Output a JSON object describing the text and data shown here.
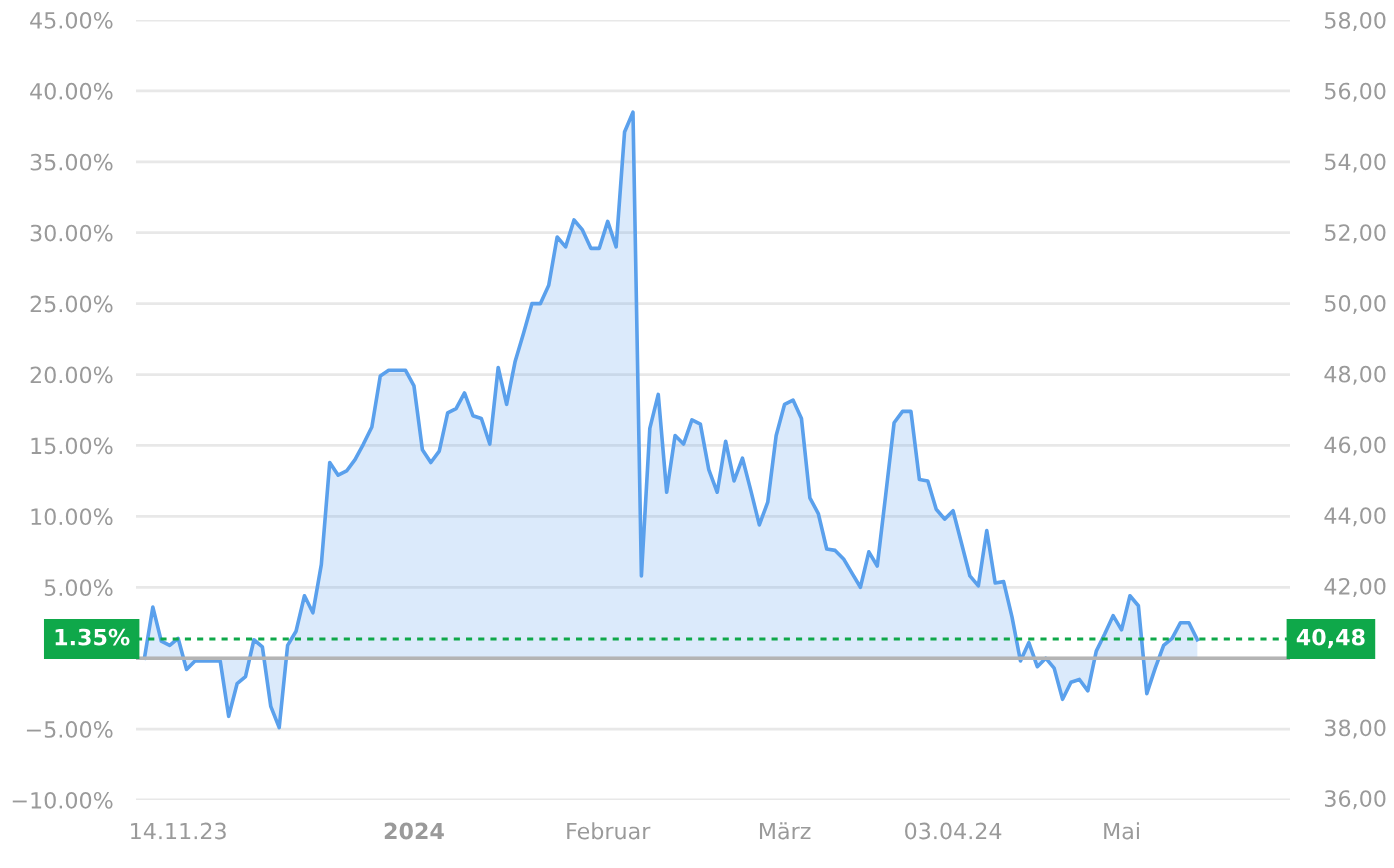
{
  "chart_data": {
    "type": "area",
    "categories": [
      null,
      null,
      null,
      null,
      "14.11.23",
      null,
      null,
      null,
      null,
      null,
      null,
      null,
      null,
      null,
      null,
      null,
      null,
      null,
      null,
      null,
      null,
      null,
      null,
      null,
      null,
      null,
      null,
      null,
      null,
      null,
      null,
      null,
      "2024",
      null,
      null,
      null,
      null,
      null,
      null,
      null,
      null,
      null,
      null,
      null,
      null,
      null,
      null,
      null,
      null,
      null,
      null,
      null,
      null,
      null,
      null,
      "Februar",
      null,
      null,
      null,
      null,
      null,
      null,
      null,
      null,
      null,
      null,
      null,
      null,
      null,
      null,
      null,
      null,
      null,
      null,
      null,
      null,
      "März",
      null,
      null,
      null,
      null,
      null,
      null,
      null,
      null,
      null,
      null,
      null,
      null,
      null,
      null,
      null,
      null,
      null,
      null,
      null,
      "03.04.24",
      null,
      null,
      null,
      null,
      null,
      null,
      null,
      null,
      null,
      null,
      null,
      null,
      null,
      null,
      null,
      null,
      null,
      null,
      null,
      "Mai",
      null,
      null,
      null,
      null,
      null,
      null,
      null,
      null,
      null,
      null,
      null,
      null,
      null,
      null,
      null,
      null,
      null,
      null,
      null
    ],
    "series": [
      {
        "color": "#5aa0ec",
        "values": [
          0.0,
          3.6,
          1.2,
          0.9,
          1.4,
          -0.8,
          -0.2,
          -0.2,
          -0.2,
          -0.2,
          -4.1,
          -1.8,
          -1.3,
          1.3,
          0.8,
          -3.4,
          -4.9,
          0.9,
          1.9,
          4.4,
          3.2,
          6.6,
          13.8,
          12.9,
          13.2,
          14.0,
          15.1,
          16.3,
          19.9,
          20.3,
          20.3,
          20.3,
          19.2,
          14.7,
          13.8,
          14.6,
          17.3,
          17.6,
          18.7,
          17.1,
          16.9,
          15.1,
          20.5,
          17.9,
          20.9,
          22.9,
          25.0,
          25.0,
          26.3,
          29.7,
          29.0,
          30.9,
          30.2,
          28.9,
          28.9,
          30.8,
          29.0,
          37.1,
          38.5,
          5.8,
          16.2,
          18.6,
          11.7,
          15.7,
          15.1,
          16.8,
          16.5,
          13.3,
          11.7,
          15.3,
          12.5,
          14.1,
          11.8,
          9.4,
          11.0,
          15.7,
          17.9,
          18.2,
          16.9,
          11.3,
          10.2,
          7.7,
          7.6,
          7.0,
          6.0,
          5.0,
          7.5,
          6.5,
          11.5,
          16.6,
          17.4,
          17.4,
          12.6,
          12.5,
          10.5,
          9.8,
          10.4,
          8.1,
          5.8,
          5.1,
          9.0,
          5.3,
          5.4,
          2.9,
          -0.2,
          1.1,
          -0.6,
          0.0,
          -0.7,
          -2.9,
          -1.7,
          -1.5,
          -2.3,
          0.5,
          1.7,
          3.0,
          2.0,
          4.4,
          3.7,
          -2.5,
          -0.7,
          0.9,
          1.4,
          2.5,
          2.5,
          1.3,
          null,
          null,
          null,
          null,
          null,
          null,
          null,
          null,
          null,
          null
        ]
      }
    ],
    "ylim": [
      -10,
      45
    ],
    "yticks": [
      {
        "value": -10,
        "label": "−10.00%"
      },
      {
        "value": -5,
        "label": "−5.00%"
      },
      {
        "value": 0,
        "label": null
      },
      {
        "value": 5,
        "label": "5.00%"
      },
      {
        "value": 10,
        "label": "10.00%"
      },
      {
        "value": 15,
        "label": "15.00%"
      },
      {
        "value": 20,
        "label": "20.00%"
      },
      {
        "value": 25,
        "label": "25.00%"
      },
      {
        "value": 30,
        "label": "30.00%"
      },
      {
        "value": 35,
        "label": "35.00%"
      },
      {
        "value": 40,
        "label": "40.00%"
      },
      {
        "value": 45,
        "label": "45.00%"
      }
    ],
    "y2lim": [
      35.95,
      58.0
    ],
    "y2ticks": [
      {
        "value": 36,
        "label": "36,00"
      },
      {
        "value": 38,
        "label": "38,00"
      },
      {
        "value": 40,
        "label": null
      },
      {
        "value": 42,
        "label": "42,00"
      },
      {
        "value": 44,
        "label": "44,00"
      },
      {
        "value": 46,
        "label": "46,00"
      },
      {
        "value": 48,
        "label": "48,00"
      },
      {
        "value": 50,
        "label": "50,00"
      },
      {
        "value": 52,
        "label": "52,00"
      },
      {
        "value": 54,
        "label": "54,00"
      },
      {
        "value": 56,
        "label": "56,00"
      },
      {
        "value": 58,
        "label": "58,00"
      }
    ],
    "ref_lines": [
      {
        "axis": "y",
        "value": 0,
        "label": null,
        "color": "#b4b4b4",
        "line_style": "solid"
      },
      {
        "axis": "y",
        "value": 1.35,
        "label": "1.35%",
        "color": "#0fa84a",
        "line_style": "dotted"
      }
    ],
    "annotations": [
      "40,48"
    ],
    "grid": "y"
  }
}
